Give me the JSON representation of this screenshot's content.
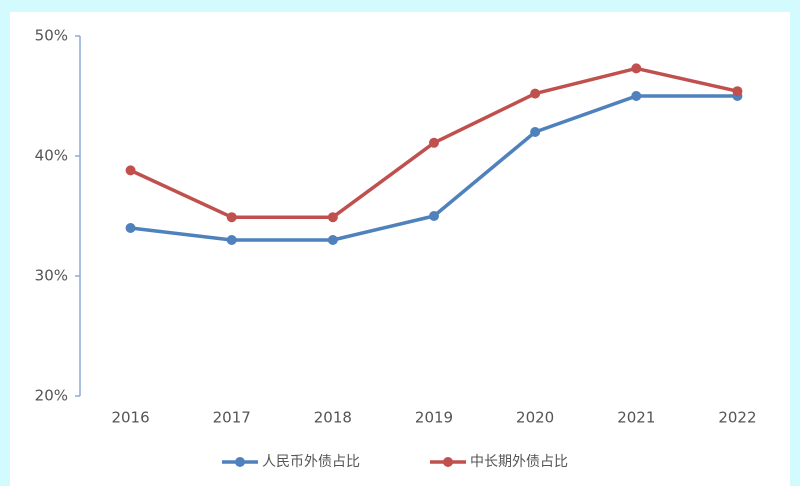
{
  "chart_data": {
    "type": "line",
    "categories": [
      "2016",
      "2017",
      "2018",
      "2019",
      "2020",
      "2021",
      "2022"
    ],
    "series": [
      {
        "name": "人民币外债占比",
        "color": "#4f81bd",
        "values": [
          34,
          33,
          33,
          35,
          42,
          45,
          45
        ]
      },
      {
        "name": "中长期外债占比",
        "color": "#c0504d",
        "values": [
          38.8,
          34.9,
          34.9,
          41.1,
          45.2,
          47.3,
          45.4
        ]
      }
    ],
    "ylim": [
      20,
      50
    ],
    "yticks": [
      {
        "value": 20,
        "label": "20%"
      },
      {
        "value": 30,
        "label": "30%"
      },
      {
        "value": 40,
        "label": "40%"
      },
      {
        "value": 50,
        "label": "50%"
      }
    ],
    "grid": false,
    "legend": "bottom"
  }
}
